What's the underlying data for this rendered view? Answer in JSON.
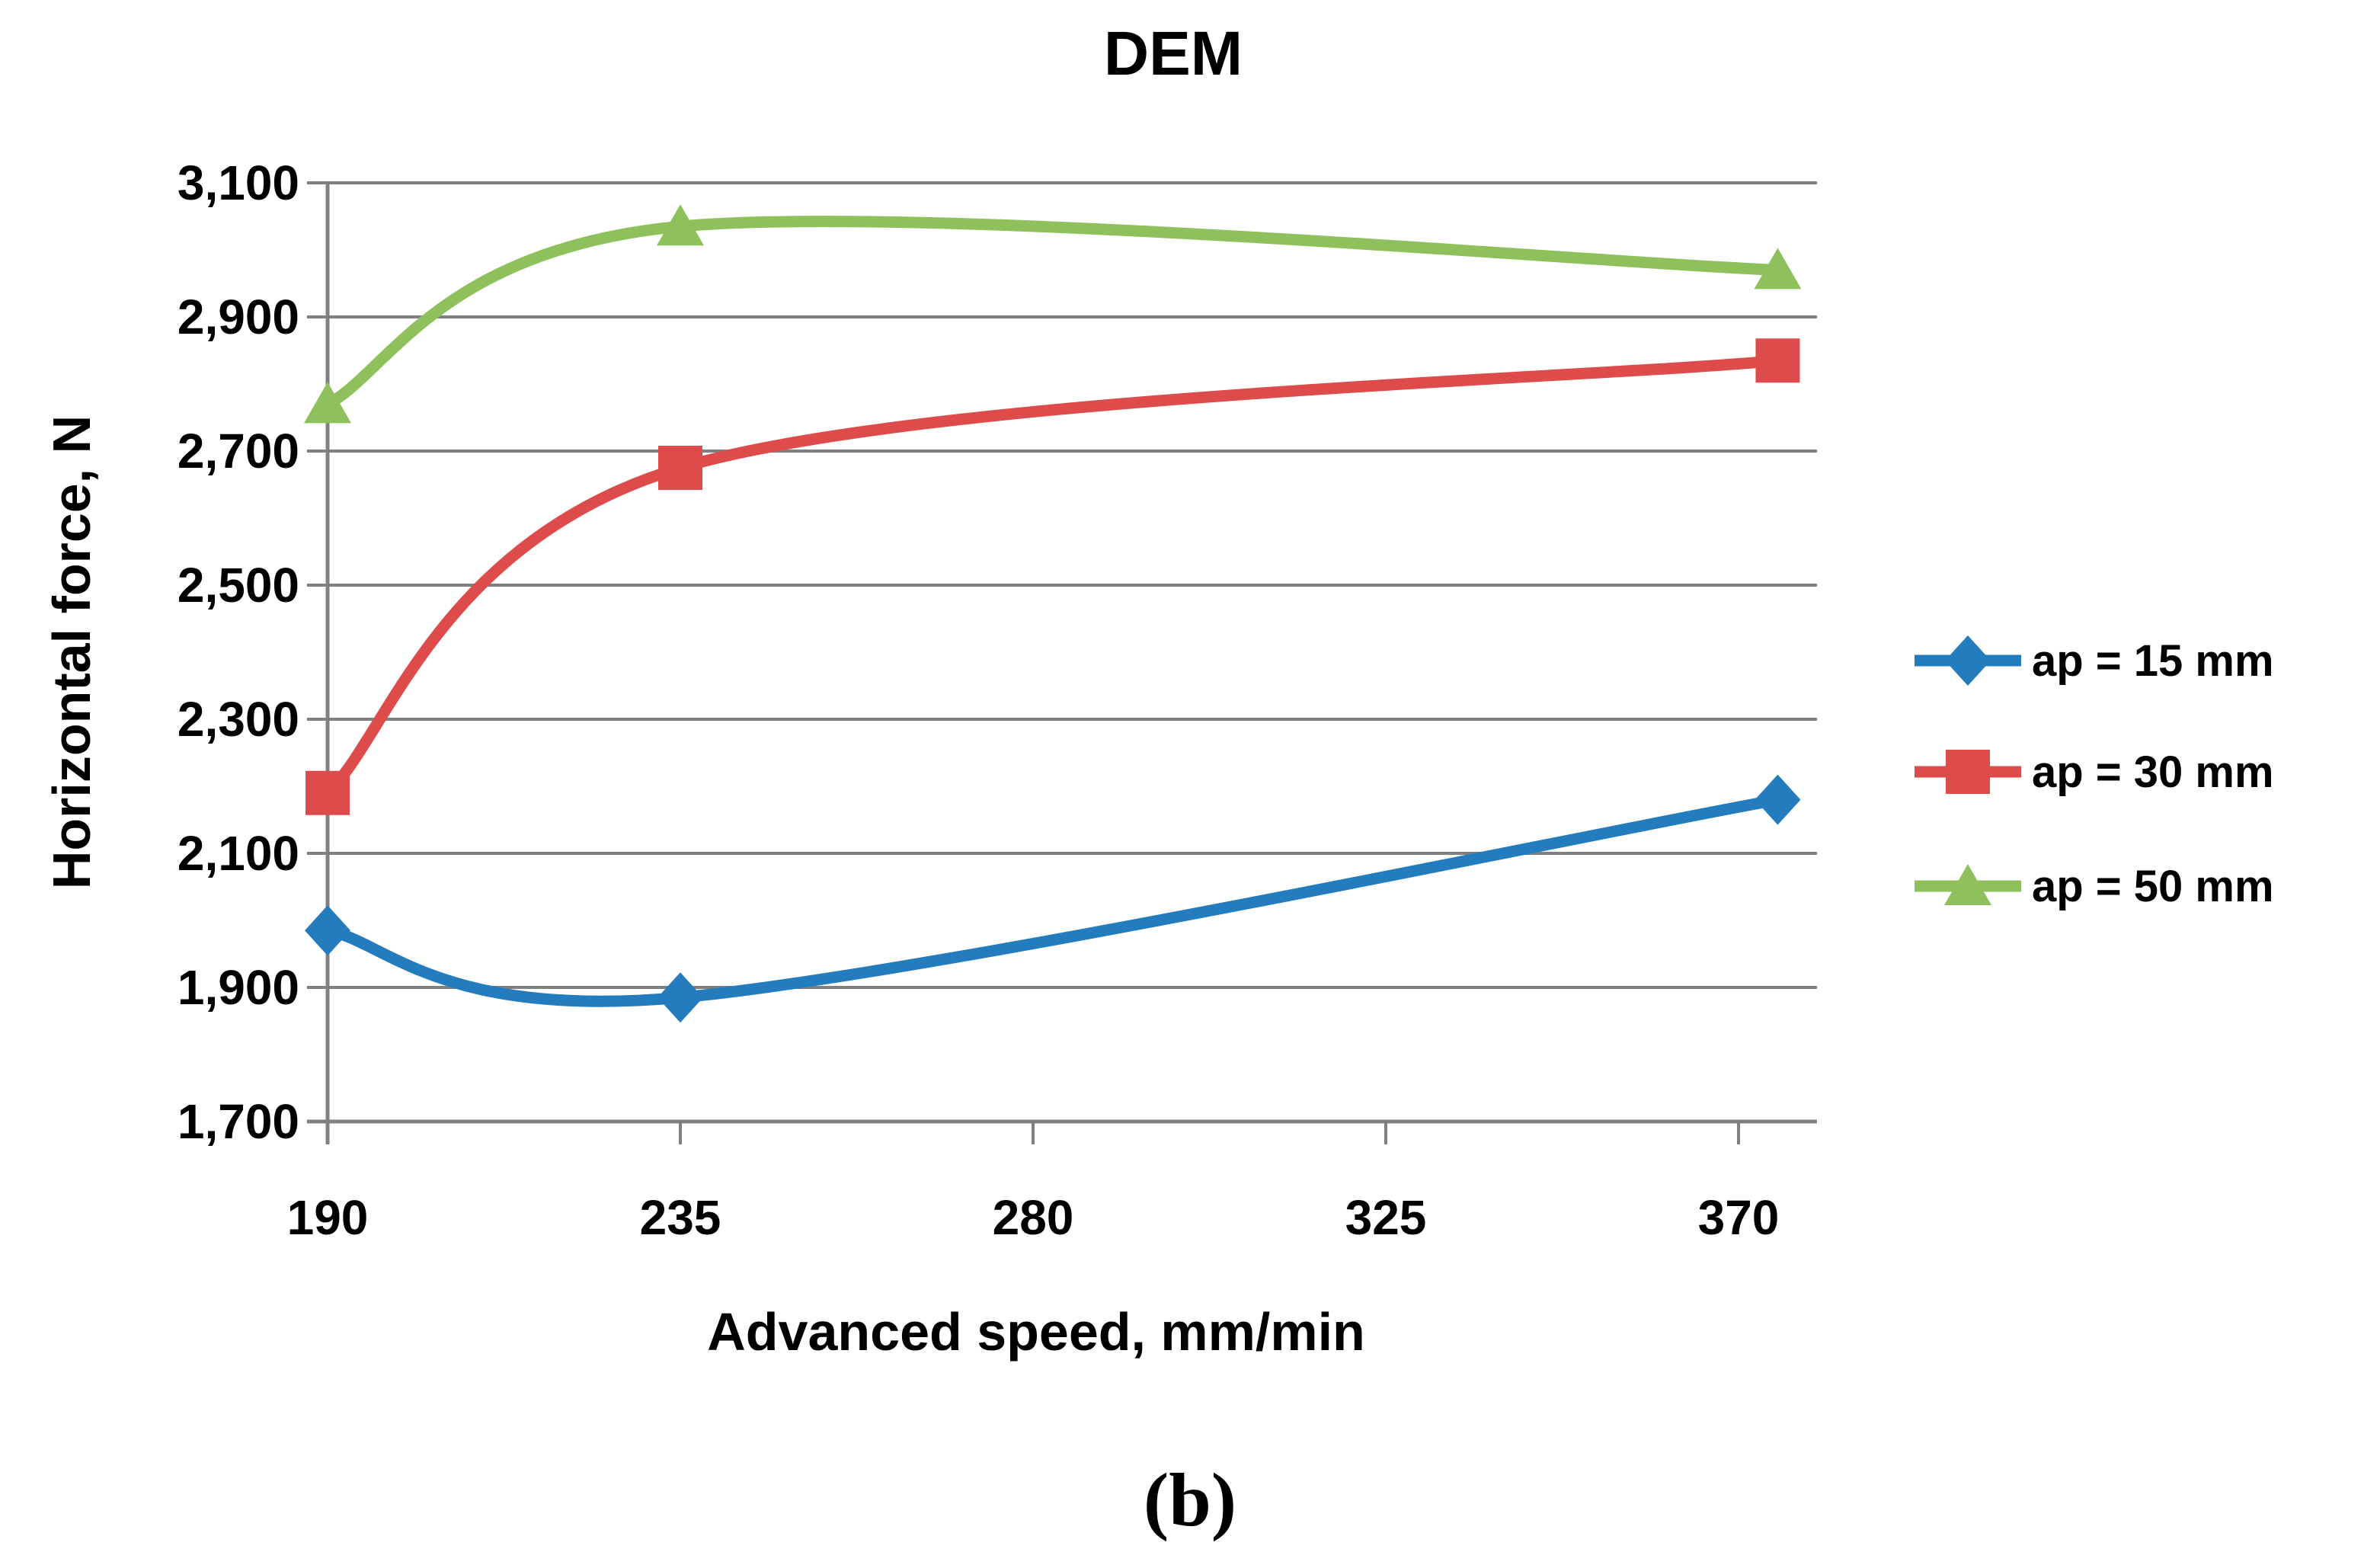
{
  "figure": {
    "title": "DEM",
    "caption": "(b)"
  },
  "chart_data": {
    "type": "line",
    "title": "DEM",
    "xlabel": "Advanced speed, mm/min",
    "ylabel": "Horizontal force, N",
    "xlim": [
      190,
      380
    ],
    "ylim": [
      1700,
      3100
    ],
    "x_ticks": [
      190,
      235,
      280,
      325,
      370
    ],
    "x_tick_labels": [
      "190",
      "235",
      "280",
      "325",
      "370"
    ],
    "y_ticks": [
      1700,
      1900,
      2100,
      2300,
      2500,
      2700,
      2900,
      3100
    ],
    "y_tick_labels": [
      "1,700",
      "1,900",
      "2,100",
      "2,300",
      "2,500",
      "2,700",
      "2,900",
      "3,100"
    ],
    "grid": "horizontal",
    "grid_color": "#808080",
    "axis_color": "#808080",
    "legend_position": "right",
    "smooth": true,
    "x": [
      190,
      235,
      375
    ],
    "series": [
      {
        "name": "ap = 15 mm",
        "color": "#237CBE",
        "marker": "diamond",
        "values": [
          1985,
          1885,
          2180
        ]
      },
      {
        "name": "ap = 30 mm",
        "color": "#DE4B4B",
        "marker": "square",
        "values": [
          2190,
          2675,
          2835
        ]
      },
      {
        "name": "ap = 50 mm",
        "color": "#8EC15C",
        "marker": "triangle",
        "values": [
          2770,
          3035,
          2970
        ]
      }
    ]
  }
}
